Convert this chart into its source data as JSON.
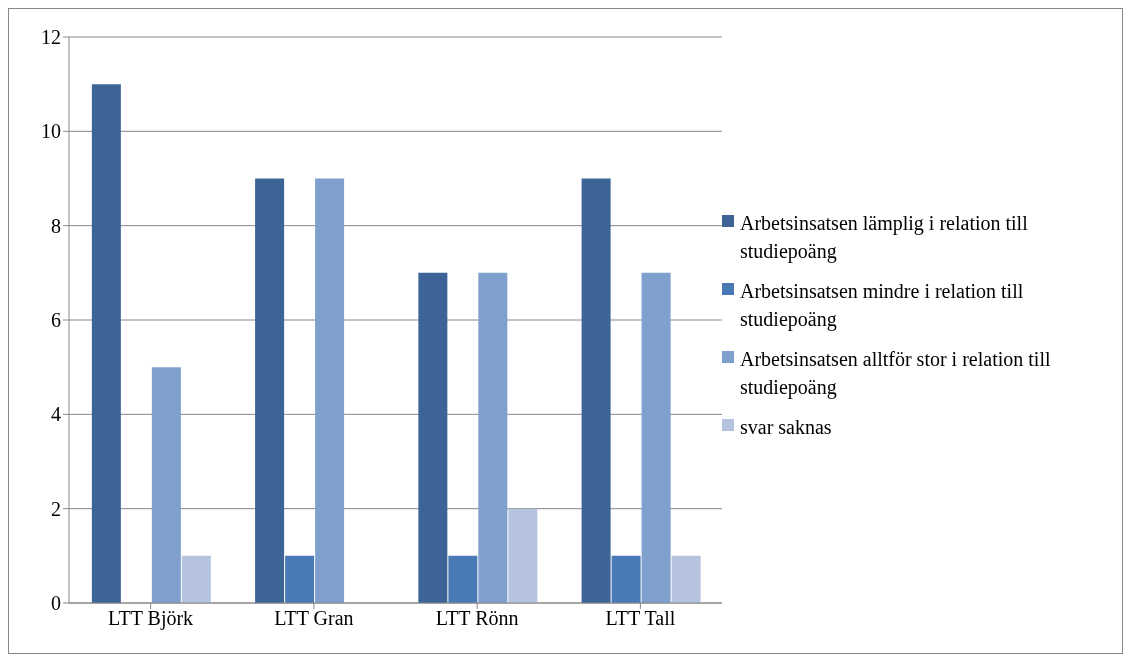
{
  "chart_data": {
    "type": "bar",
    "categories": [
      "LTT Björk",
      "LTT Gran",
      "LTT Rönn",
      "LTT Tall"
    ],
    "series": [
      {
        "name": "Arbetsinsatsen lämplig i relation till studiepoäng",
        "color": "#3c6496",
        "values": [
          11,
          9,
          7,
          9
        ]
      },
      {
        "name": "Arbetsinsatsen mindre i relation till studiepoäng",
        "color": "#4a7ab5",
        "values": [
          0,
          1,
          1,
          1
        ]
      },
      {
        "name": "Arbetsinsatsen alltför stor i relation till studiepoäng",
        "color": "#7f9fcc",
        "values": [
          5,
          9,
          7,
          7
        ]
      },
      {
        "name": "svar saknas",
        "color": "#b5c3df",
        "values": [
          1,
          0,
          2,
          1
        ]
      }
    ],
    "ylim": [
      0,
      12
    ],
    "yticks": [
      0,
      2,
      4,
      6,
      8,
      10,
      12
    ],
    "grid": "y",
    "legend": "right"
  }
}
